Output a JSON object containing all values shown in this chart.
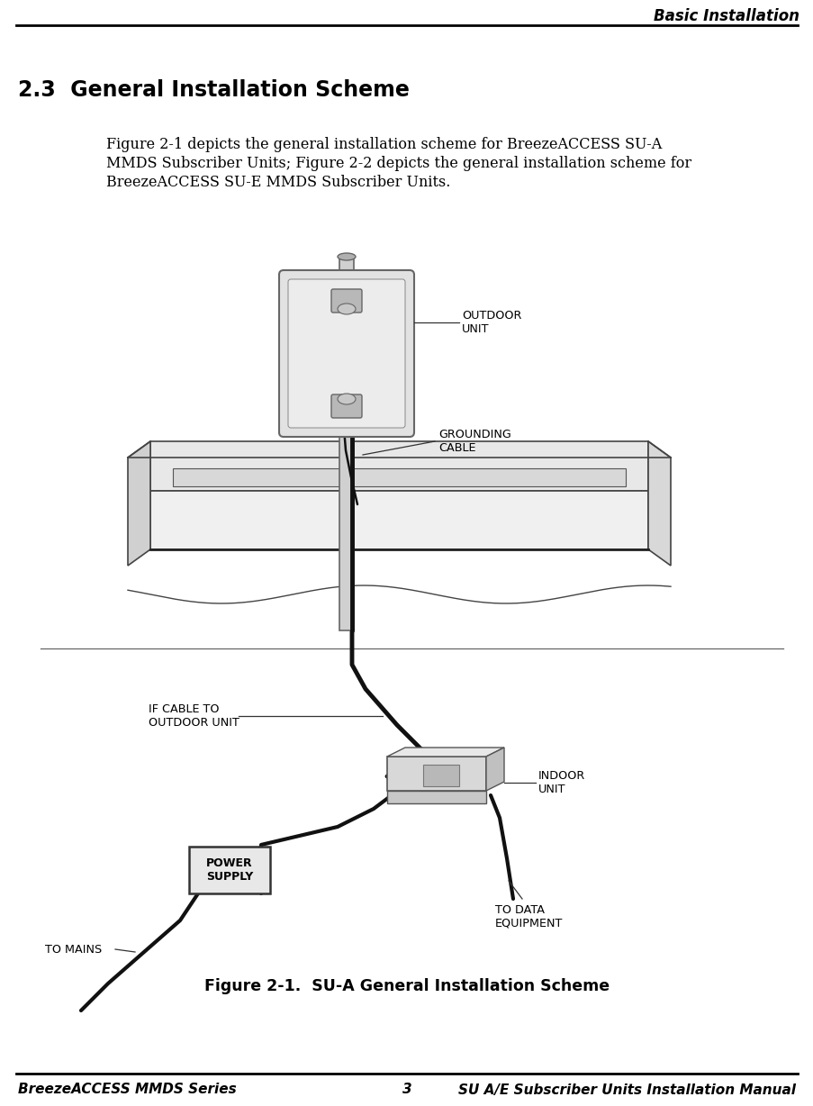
{
  "header_text": "Basic Installation",
  "section_title": "2.3  General Installation Scheme",
  "body_text_lines": [
    "Figure 2-1 depicts the general installation scheme for BreezeACCESS SU-A",
    "MMDS Subscriber Units; Figure 2-2 depicts the general installation scheme for",
    "BreezeACCESS SU-E MMDS Subscriber Units."
  ],
  "figure_caption": "Figure 2-1.  SU-A General Installation Scheme",
  "footer_left": "BreezeACCESS MMDS Series",
  "footer_center": "3",
  "footer_right": "SU A/E Subscriber Units Installation Manual",
  "bg_color": "#ffffff",
  "text_color": "#000000",
  "line_color": "#000000",
  "gray_light": "#e0e0e0",
  "gray_mid": "#c8c8c8",
  "gray_dark": "#aaaaaa",
  "label_outdoor_unit": "OUTDOOR\nUNIT",
  "label_grounding_cable": "GROUNDING\nCABLE",
  "label_if_cable": "IF CABLE TO\nOUTDOOR UNIT",
  "label_indoor_unit": "INDOOR\nUNIT",
  "label_to_mains": "TO MAINS",
  "label_power_supply": "POWER\nSUPPLY",
  "label_to_data": "TO DATA\nEQUIPMENT"
}
